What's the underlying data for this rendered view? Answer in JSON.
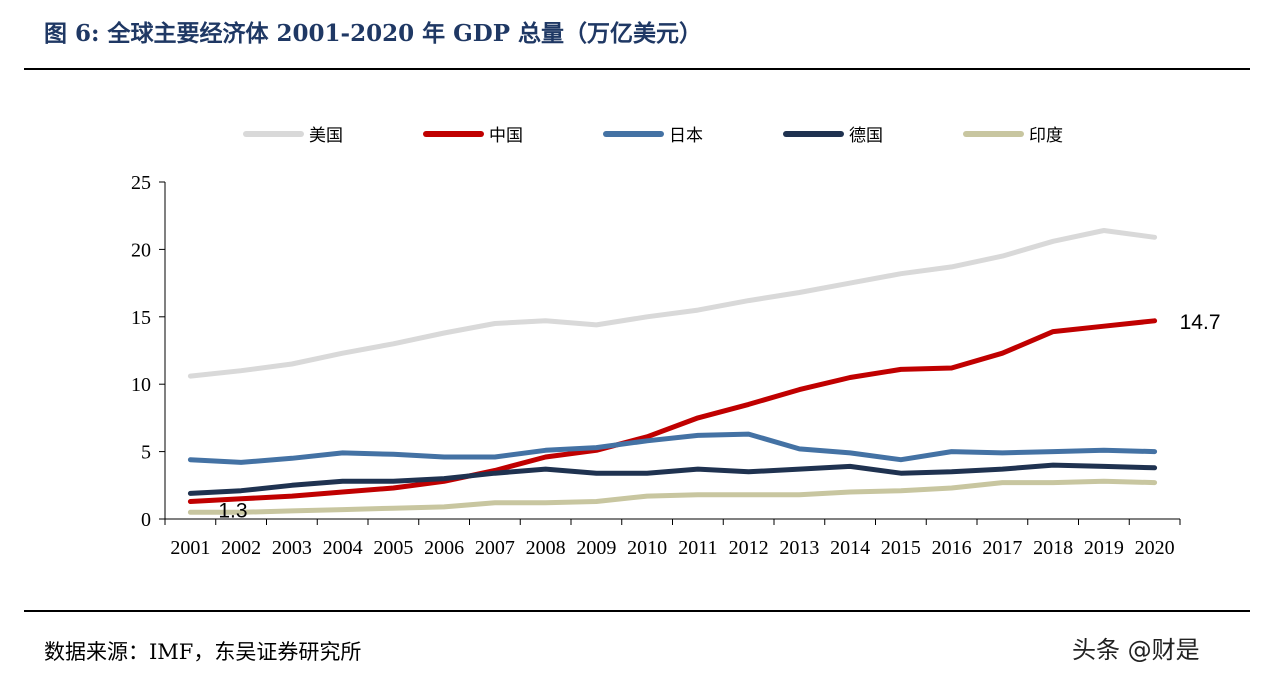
{
  "header": {
    "title": "图 6:  全球主要经济体 2001-2020 年 GDP 总量（万亿美元）"
  },
  "footer": {
    "source": "数据来源：IMF，东吴证券研究所",
    "watermark": "头条 @财是"
  },
  "chart_data": {
    "type": "line",
    "title": "",
    "xlabel": "",
    "ylabel": "",
    "ylim": [
      0,
      25
    ],
    "yticks": [
      0,
      5,
      10,
      15,
      20,
      25
    ],
    "grid": false,
    "legend_position": "top",
    "categories": [
      "2001",
      "2002",
      "2003",
      "2004",
      "2005",
      "2006",
      "2007",
      "2008",
      "2009",
      "2010",
      "2011",
      "2012",
      "2013",
      "2014",
      "2015",
      "2016",
      "2017",
      "2018",
      "2019",
      "2020"
    ],
    "series": [
      {
        "name": "美国",
        "color": "#d9d9d9",
        "values": [
          10.6,
          11.0,
          11.5,
          12.3,
          13.0,
          13.8,
          14.5,
          14.7,
          14.4,
          15.0,
          15.5,
          16.2,
          16.8,
          17.5,
          18.2,
          18.7,
          19.5,
          20.6,
          21.4,
          20.9
        ]
      },
      {
        "name": "中国",
        "color": "#c00000",
        "values": [
          1.3,
          1.5,
          1.7,
          2.0,
          2.3,
          2.8,
          3.6,
          4.6,
          5.1,
          6.1,
          7.5,
          8.5,
          9.6,
          10.5,
          11.1,
          11.2,
          12.3,
          13.9,
          14.3,
          14.7
        ]
      },
      {
        "name": "日本",
        "color": "#4472a4",
        "values": [
          4.4,
          4.2,
          4.5,
          4.9,
          4.8,
          4.6,
          4.6,
          5.1,
          5.3,
          5.8,
          6.2,
          6.3,
          5.2,
          4.9,
          4.4,
          5.0,
          4.9,
          5.0,
          5.1,
          5.0
        ]
      },
      {
        "name": "德国",
        "color": "#1f3250",
        "values": [
          1.9,
          2.1,
          2.5,
          2.8,
          2.8,
          3.0,
          3.4,
          3.7,
          3.4,
          3.4,
          3.7,
          3.5,
          3.7,
          3.9,
          3.4,
          3.5,
          3.7,
          4.0,
          3.9,
          3.8
        ]
      },
      {
        "name": "印度",
        "color": "#c8c6a0",
        "values": [
          0.5,
          0.5,
          0.6,
          0.7,
          0.8,
          0.9,
          1.2,
          1.2,
          1.3,
          1.7,
          1.8,
          1.8,
          1.8,
          2.0,
          2.1,
          2.3,
          2.7,
          2.7,
          2.8,
          2.7
        ]
      }
    ],
    "annotations": [
      {
        "series": "中国",
        "index": 0,
        "text": "1.3"
      },
      {
        "series": "中国",
        "index": 19,
        "text": "14.7"
      }
    ]
  }
}
